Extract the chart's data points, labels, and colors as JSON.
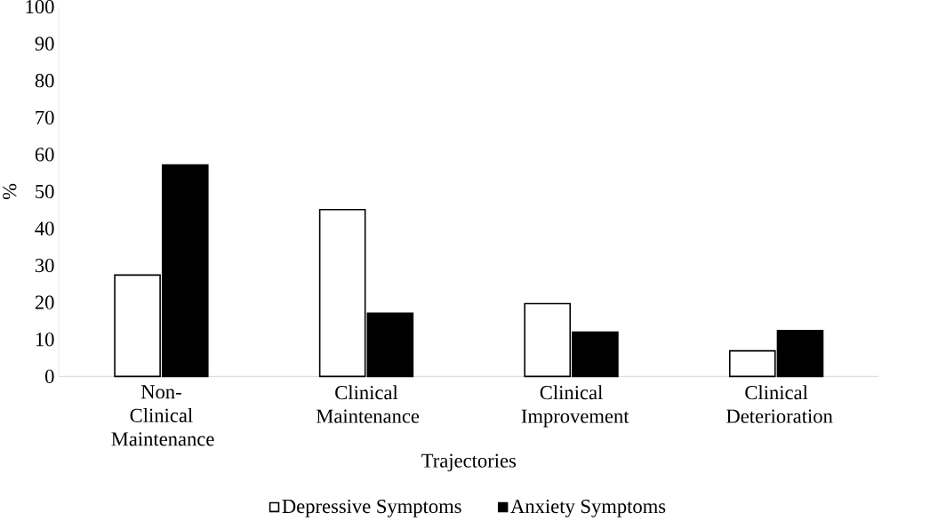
{
  "chart_data": {
    "type": "bar",
    "xlabel": "Trajectories",
    "ylabel": "%",
    "categories": [
      "Non-Clinical Maintenance",
      "Clinical Maintenance",
      "Clinical Improvement",
      "Clinical Deterioration"
    ],
    "series": [
      {
        "name": "Depressive Symptoms",
        "color": "#ffffff",
        "values": [
          27.4,
          45.1,
          19.7,
          6.9
        ]
      },
      {
        "name": "Anxiety Symptoms",
        "color": "#000000",
        "values": [
          57.2,
          17.1,
          12.0,
          12.4
        ]
      }
    ],
    "ylim": [
      0,
      100
    ],
    "yticks": [
      0,
      10,
      20,
      30,
      40,
      50,
      60,
      70,
      80,
      90,
      100
    ],
    "grid": false,
    "legend": "bottom"
  }
}
